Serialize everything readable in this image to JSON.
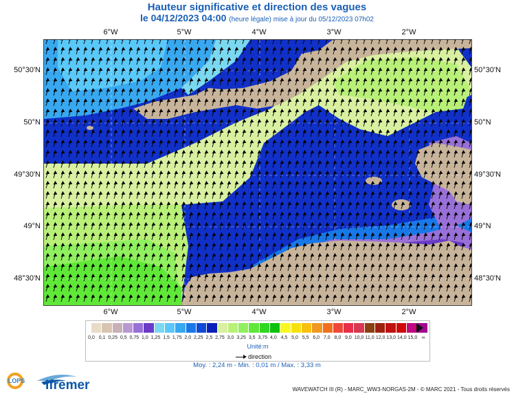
{
  "title": {
    "line1": "Hauteur significative et direction des vagues",
    "line2_date": "le 04/12/2023 04:00",
    "line2_note": "(heure légale) mise à jour du 05/12/2023 07h02"
  },
  "map": {
    "lon_ticks": [
      "6°W",
      "5°W",
      "4°W",
      "3°W",
      "2°W"
    ],
    "lat_ticks_left": [
      "50°30'N",
      "50°N",
      "49°30'N",
      "49°N",
      "48°30'N"
    ],
    "lat_ticks_right": [
      "50°30'N",
      "50°N",
      "49°30'N",
      "49°N",
      "48°30'N"
    ],
    "land_color": "#c8b49a",
    "dominant_direction": "north-northeast"
  },
  "legend": {
    "colors": [
      "#e8dcc8",
      "#d8c4b0",
      "#c8b0b8",
      "#b898d0",
      "#9870d8",
      "#6a3cc8",
      "#7ad8f0",
      "#5ac8f8",
      "#38a8f0",
      "#1878e8",
      "#1048d8",
      "#0a20b8",
      "#d8f0a0",
      "#b8f078",
      "#90f060",
      "#60e838",
      "#30d820",
      "#10c010",
      "#f8f820",
      "#f8e010",
      "#f8c010",
      "#f09820",
      "#f07020",
      "#f04838",
      "#e83048",
      "#d83850",
      "#8a4010",
      "#a02010",
      "#c01010",
      "#d00808",
      "#c00880",
      "#a00890"
    ],
    "labels": [
      "0,0",
      "0,1",
      "0,25",
      "0,5",
      "0,75",
      "1,0",
      "1,25",
      "1,5",
      "1,75",
      "2,0",
      "2,25",
      "2,5",
      "2,75",
      "3,0",
      "3,25",
      "3,5",
      "3,75",
      "4,0",
      "4,5",
      "5,0",
      "5,5",
      "6,0",
      "7,0",
      "8,0",
      "9,0",
      "10,0",
      "11,0",
      "12,0",
      "13,0",
      "14,0",
      "15,0",
      "∞"
    ],
    "unit": "Unité:m",
    "direction_label": "direction"
  },
  "stats": "Moy. : 2,24 m   -   Min. : 0,01 m / Max. : 3,33 m",
  "logos": {
    "lops": "LOPS",
    "ifremer": "Ifremer"
  },
  "footer": "WAVEWATCH III (R) - MARC_WW3-NORGAS-2M - © MARC 2021 - Tous droits réservés"
}
